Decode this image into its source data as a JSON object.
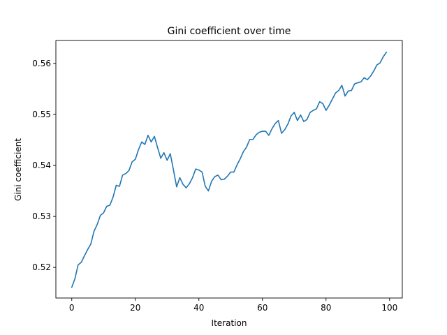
{
  "chart_data": {
    "type": "line",
    "title": "Gini coefficient over time",
    "xlabel": "Iteration",
    "ylabel": "Gini coefficient",
    "xlim": [
      -5,
      104
    ],
    "ylim": [
      0.514,
      0.5645
    ],
    "xticks": [
      0,
      20,
      40,
      60,
      80,
      100
    ],
    "xtick_labels": [
      "0",
      "20",
      "40",
      "60",
      "80",
      "100"
    ],
    "yticks": [
      0.52,
      0.53,
      0.54,
      0.55,
      0.56
    ],
    "ytick_labels": [
      "0.52",
      "0.53",
      "0.54",
      "0.55",
      "0.56"
    ],
    "grid": false,
    "series": [
      {
        "color": "#1f77b4",
        "x": [
          0,
          1,
          2,
          3,
          4,
          5,
          6,
          7,
          8,
          9,
          10,
          11,
          12,
          13,
          14,
          15,
          16,
          17,
          18,
          19,
          20,
          21,
          22,
          23,
          24,
          25,
          26,
          27,
          28,
          29,
          30,
          31,
          32,
          33,
          34,
          35,
          36,
          37,
          38,
          39,
          40,
          41,
          42,
          43,
          44,
          45,
          46,
          47,
          48,
          49,
          50,
          51,
          52,
          53,
          54,
          55,
          56,
          57,
          58,
          59,
          60,
          61,
          62,
          63,
          64,
          65,
          66,
          67,
          68,
          69,
          70,
          71,
          72,
          73,
          74,
          75,
          76,
          77,
          78,
          79,
          80,
          81,
          82,
          83,
          84,
          85,
          86,
          87,
          88,
          89,
          90,
          91,
          92,
          93,
          94,
          95,
          96,
          97,
          98,
          99
        ],
        "y": [
          0.5161,
          0.5178,
          0.5205,
          0.521,
          0.5223,
          0.5235,
          0.5246,
          0.5271,
          0.5284,
          0.5302,
          0.5307,
          0.532,
          0.5322,
          0.5338,
          0.5361,
          0.5359,
          0.5381,
          0.5384,
          0.539,
          0.5407,
          0.5412,
          0.5431,
          0.5446,
          0.5441,
          0.5459,
          0.5446,
          0.5457,
          0.5435,
          0.5414,
          0.5425,
          0.541,
          0.5423,
          0.5391,
          0.5358,
          0.5376,
          0.5363,
          0.5356,
          0.5364,
          0.5376,
          0.5393,
          0.5391,
          0.5387,
          0.5359,
          0.535,
          0.5369,
          0.5378,
          0.5381,
          0.5372,
          0.5373,
          0.5379,
          0.5387,
          0.5387,
          0.5401,
          0.5413,
          0.5427,
          0.5436,
          0.5451,
          0.5451,
          0.546,
          0.5465,
          0.5467,
          0.5467,
          0.5459,
          0.5472,
          0.5482,
          0.5488,
          0.5463,
          0.547,
          0.5481,
          0.5497,
          0.5504,
          0.5488,
          0.5499,
          0.5486,
          0.549,
          0.5504,
          0.5508,
          0.5511,
          0.5525,
          0.5521,
          0.5508,
          0.5518,
          0.553,
          0.5542,
          0.5547,
          0.5557,
          0.5536,
          0.5546,
          0.5547,
          0.556,
          0.5562,
          0.5564,
          0.5572,
          0.5568,
          0.5575,
          0.5585,
          0.5597,
          0.5601,
          0.5613,
          0.5622
        ]
      }
    ]
  }
}
